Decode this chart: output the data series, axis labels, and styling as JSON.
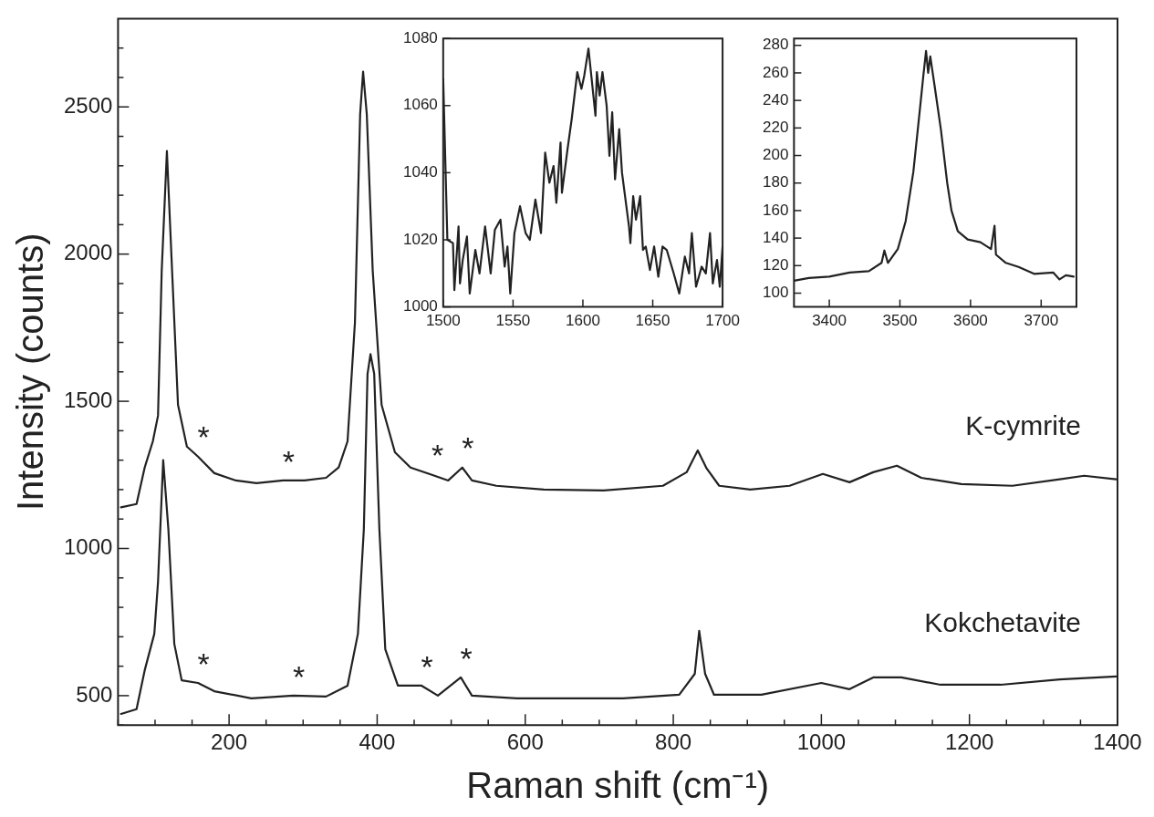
{
  "chart_data": [
    {
      "type": "line",
      "xlabel": "Raman shift (cm⁻¹)",
      "ylabel": "Intensity (counts)",
      "xlim": [
        50,
        1400
      ],
      "ylim": [
        400,
        2800
      ],
      "xticks": [
        {
          "value": 50,
          "label": null
        },
        {
          "value": 100,
          "label": null
        },
        {
          "value": 150,
          "label": null
        },
        200,
        {
          "value": 250,
          "label": null
        },
        {
          "value": 300,
          "label": null
        },
        {
          "value": 350,
          "label": null
        },
        400,
        {
          "value": 450,
          "label": null
        },
        {
          "value": 500,
          "label": null
        },
        {
          "value": 550,
          "label": null
        },
        600,
        {
          "value": 650,
          "label": null
        },
        {
          "value": 700,
          "label": null
        },
        {
          "value": 750,
          "label": null
        },
        800,
        {
          "value": 850,
          "label": null
        },
        {
          "value": 900,
          "label": null
        },
        {
          "value": 950,
          "label": null
        },
        1000,
        {
          "value": 1050,
          "label": null
        },
        {
          "value": 1100,
          "label": null
        },
        {
          "value": 1150,
          "label": null
        },
        1200,
        {
          "value": 1250,
          "label": null
        },
        {
          "value": 1300,
          "label": null
        },
        {
          "value": 1350,
          "label": null
        },
        1400
      ],
      "yticks": [
        {
          "value": 400,
          "label": null
        },
        500,
        {
          "value": 600,
          "label": null
        },
        {
          "value": 700,
          "label": null
        },
        {
          "value": 800,
          "label": null
        },
        {
          "value": 900,
          "label": null
        },
        1000,
        {
          "value": 1100,
          "label": null
        },
        {
          "value": 1200,
          "label": null
        },
        {
          "value": 1300,
          "label": null
        },
        {
          "value": 1400,
          "label": null
        },
        1500,
        {
          "value": 1600,
          "label": null
        },
        {
          "value": 1700,
          "label": null
        },
        {
          "value": 1800,
          "label": null
        },
        {
          "value": 1900,
          "label": null
        },
        2000,
        {
          "value": 2100,
          "label": null
        },
        {
          "value": 2200,
          "label": null
        },
        {
          "value": 2300,
          "label": null
        },
        {
          "value": 2400,
          "label": null
        },
        2500,
        {
          "value": 2600,
          "label": null
        },
        {
          "value": 2700,
          "label": null
        }
      ],
      "grid": false,
      "legend": false,
      "series": [
        {
          "name": "K-cymrite",
          "color": "#222222",
          "x": [
            54,
            75,
            86,
            97,
            104,
            109,
            116,
            123,
            131,
            143,
            158,
            180,
            209,
            237,
            273,
            302,
            331,
            348,
            360,
            370,
            377,
            381,
            386,
            394,
            406,
            424,
            445,
            474,
            496,
            515,
            528,
            561,
            625,
            706,
            786,
            818,
            833,
            845,
            862,
            904,
            957,
            1002,
            1038,
            1070,
            1102,
            1135,
            1189,
            1258,
            1322,
            1355,
            1398
          ],
          "values": [
            1140,
            1151,
            1275,
            1364,
            1451,
            1944,
            2350,
            1944,
            1488,
            1346,
            1312,
            1256,
            1231,
            1222,
            1231,
            1231,
            1240,
            1275,
            1364,
            1769,
            2475,
            2620,
            2475,
            1944,
            1488,
            1327,
            1275,
            1250,
            1231,
            1275,
            1231,
            1213,
            1200,
            1197,
            1213,
            1259,
            1333,
            1272,
            1213,
            1200,
            1213,
            1253,
            1225,
            1259,
            1281,
            1240,
            1219,
            1213,
            1235,
            1247,
            1235
          ]
        },
        {
          "name": "Kokchetavite",
          "color": "#222222",
          "x": [
            54,
            75,
            86,
            99,
            104,
            111,
            118,
            126,
            136,
            158,
            180,
            230,
            287,
            331,
            360,
            374,
            382,
            387,
            391,
            396,
            403,
            411,
            428,
            460,
            482,
            513,
            528,
            589,
            625,
            732,
            808,
            829,
            835,
            843,
            855,
            919,
            1000,
            1038,
            1070,
            1108,
            1161,
            1242,
            1322,
            1398
          ],
          "values": [
            438,
            454,
            586,
            710,
            886,
            1300,
            1065,
            676,
            552,
            543,
            515,
            491,
            500,
            497,
            534,
            710,
            1065,
            1593,
            1660,
            1593,
            1065,
            657,
            534,
            534,
            500,
            562,
            500,
            491,
            491,
            491,
            503,
            574,
            720,
            574,
            503,
            503,
            543,
            522,
            562,
            562,
            537,
            537,
            555,
            565
          ]
        }
      ],
      "annotations": [
        {
          "text": "*",
          "x": 158,
          "y": 1312
        },
        {
          "text": "*",
          "x": 273,
          "y": 1231
        },
        {
          "text": "*",
          "x": 474,
          "y": 1250
        },
        {
          "text": "*",
          "x": 515,
          "y": 1275
        },
        {
          "text": "*",
          "x": 158,
          "y": 543
        },
        {
          "text": "*",
          "x": 287,
          "y": 500
        },
        {
          "text": "*",
          "x": 460,
          "y": 534
        },
        {
          "text": "*",
          "x": 513,
          "y": 562
        }
      ]
    },
    {
      "type": "line",
      "xlim": [
        1500,
        1700
      ],
      "ylim": [
        1000,
        1080
      ],
      "xticks": [
        1500,
        1550,
        1600,
        1650,
        1700
      ],
      "yticks": [
        1000,
        1020,
        1040,
        1060,
        1080
      ],
      "grid": false,
      "legend": false,
      "series": [
        {
          "color": "#222222",
          "x": [
            1500,
            1503,
            1507,
            1508,
            1511,
            1512,
            1514,
            1517,
            1519,
            1523,
            1526,
            1530,
            1534,
            1537,
            1541,
            1544,
            1546,
            1548,
            1551,
            1555,
            1559,
            1562,
            1566,
            1570,
            1573,
            1576,
            1579,
            1581,
            1584,
            1585,
            1589,
            1592,
            1596,
            1599,
            1601,
            1604,
            1607,
            1609,
            1610,
            1612,
            1614,
            1617,
            1619,
            1621,
            1623,
            1626,
            1628,
            1633,
            1634,
            1636,
            1638,
            1641,
            1643,
            1645,
            1648,
            1651,
            1654,
            1657,
            1660,
            1665,
            1669,
            1673,
            1676,
            1678,
            1681,
            1685,
            1688,
            1691,
            1693,
            1696,
            1698,
            1700
          ],
          "values": [
            1068,
            1020,
            1019,
            1005,
            1024,
            1007,
            1014,
            1021,
            1004,
            1017,
            1010,
            1024,
            1010,
            1023,
            1026,
            1012,
            1018,
            1004,
            1022,
            1030,
            1022,
            1020,
            1032,
            1022,
            1046,
            1037,
            1042,
            1031,
            1049,
            1034,
            1047,
            1056,
            1070,
            1065,
            1069,
            1077,
            1065,
            1057,
            1070,
            1063,
            1070,
            1060,
            1045,
            1058,
            1038,
            1053,
            1040,
            1024,
            1019,
            1033,
            1026,
            1033,
            1017,
            1018,
            1011,
            1018,
            1009,
            1018,
            1017,
            1010,
            1004,
            1015,
            1010,
            1022,
            1006,
            1012,
            1010,
            1022,
            1007,
            1014,
            1006,
            1018
          ]
        }
      ]
    },
    {
      "type": "line",
      "xlim": [
        3350,
        3750
      ],
      "ylim": [
        90,
        285
      ],
      "xticks": [
        3400,
        3500,
        3600,
        3700
      ],
      "yticks": [
        100,
        120,
        140,
        160,
        180,
        200,
        220,
        240,
        260,
        280
      ],
      "grid": false,
      "legend": false,
      "series": [
        {
          "color": "#222222",
          "x": [
            3350,
            3371,
            3400,
            3429,
            3456,
            3474,
            3478,
            3483,
            3497,
            3508,
            3519,
            3528,
            3533,
            3537,
            3540,
            3543,
            3549,
            3558,
            3567,
            3573,
            3582,
            3596,
            3614,
            3629,
            3634,
            3636,
            3650,
            3668,
            3690,
            3717,
            3726,
            3735,
            3746
          ],
          "values": [
            109,
            111,
            112,
            115,
            116,
            122,
            131,
            122,
            132,
            152,
            188,
            232,
            257,
            276,
            260,
            272,
            251,
            219,
            180,
            160,
            145,
            139,
            137,
            132,
            149,
            128,
            122,
            119,
            114,
            115,
            110,
            113,
            112
          ]
        }
      ]
    }
  ]
}
